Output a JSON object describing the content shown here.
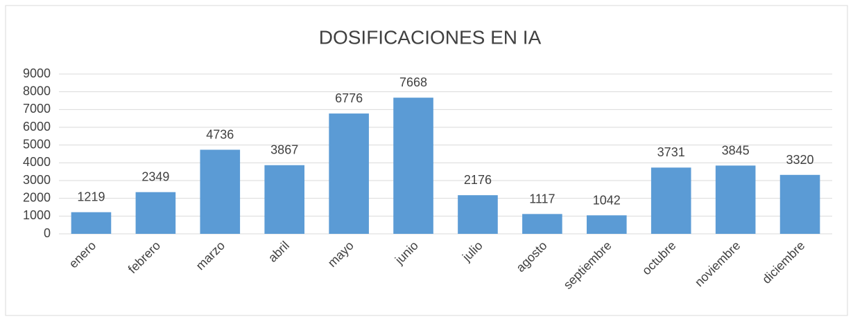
{
  "chart_data": {
    "type": "bar",
    "title": "DOSIFICACIONES EN IA",
    "categories": [
      "enero",
      "febrero",
      "marzo",
      "abril",
      "mayo",
      "junio",
      "julio",
      "agosto",
      "septiembre",
      "octubre",
      "noviembre",
      "diciembre"
    ],
    "values": [
      1219,
      2349,
      4736,
      3867,
      6776,
      7668,
      2176,
      1117,
      1042,
      3731,
      3845,
      3320
    ],
    "color": "#5b9bd5",
    "ylim": [
      0,
      9000
    ],
    "yticks": [
      0,
      1000,
      2000,
      3000,
      4000,
      5000,
      6000,
      7000,
      8000,
      9000
    ],
    "grid": true
  }
}
